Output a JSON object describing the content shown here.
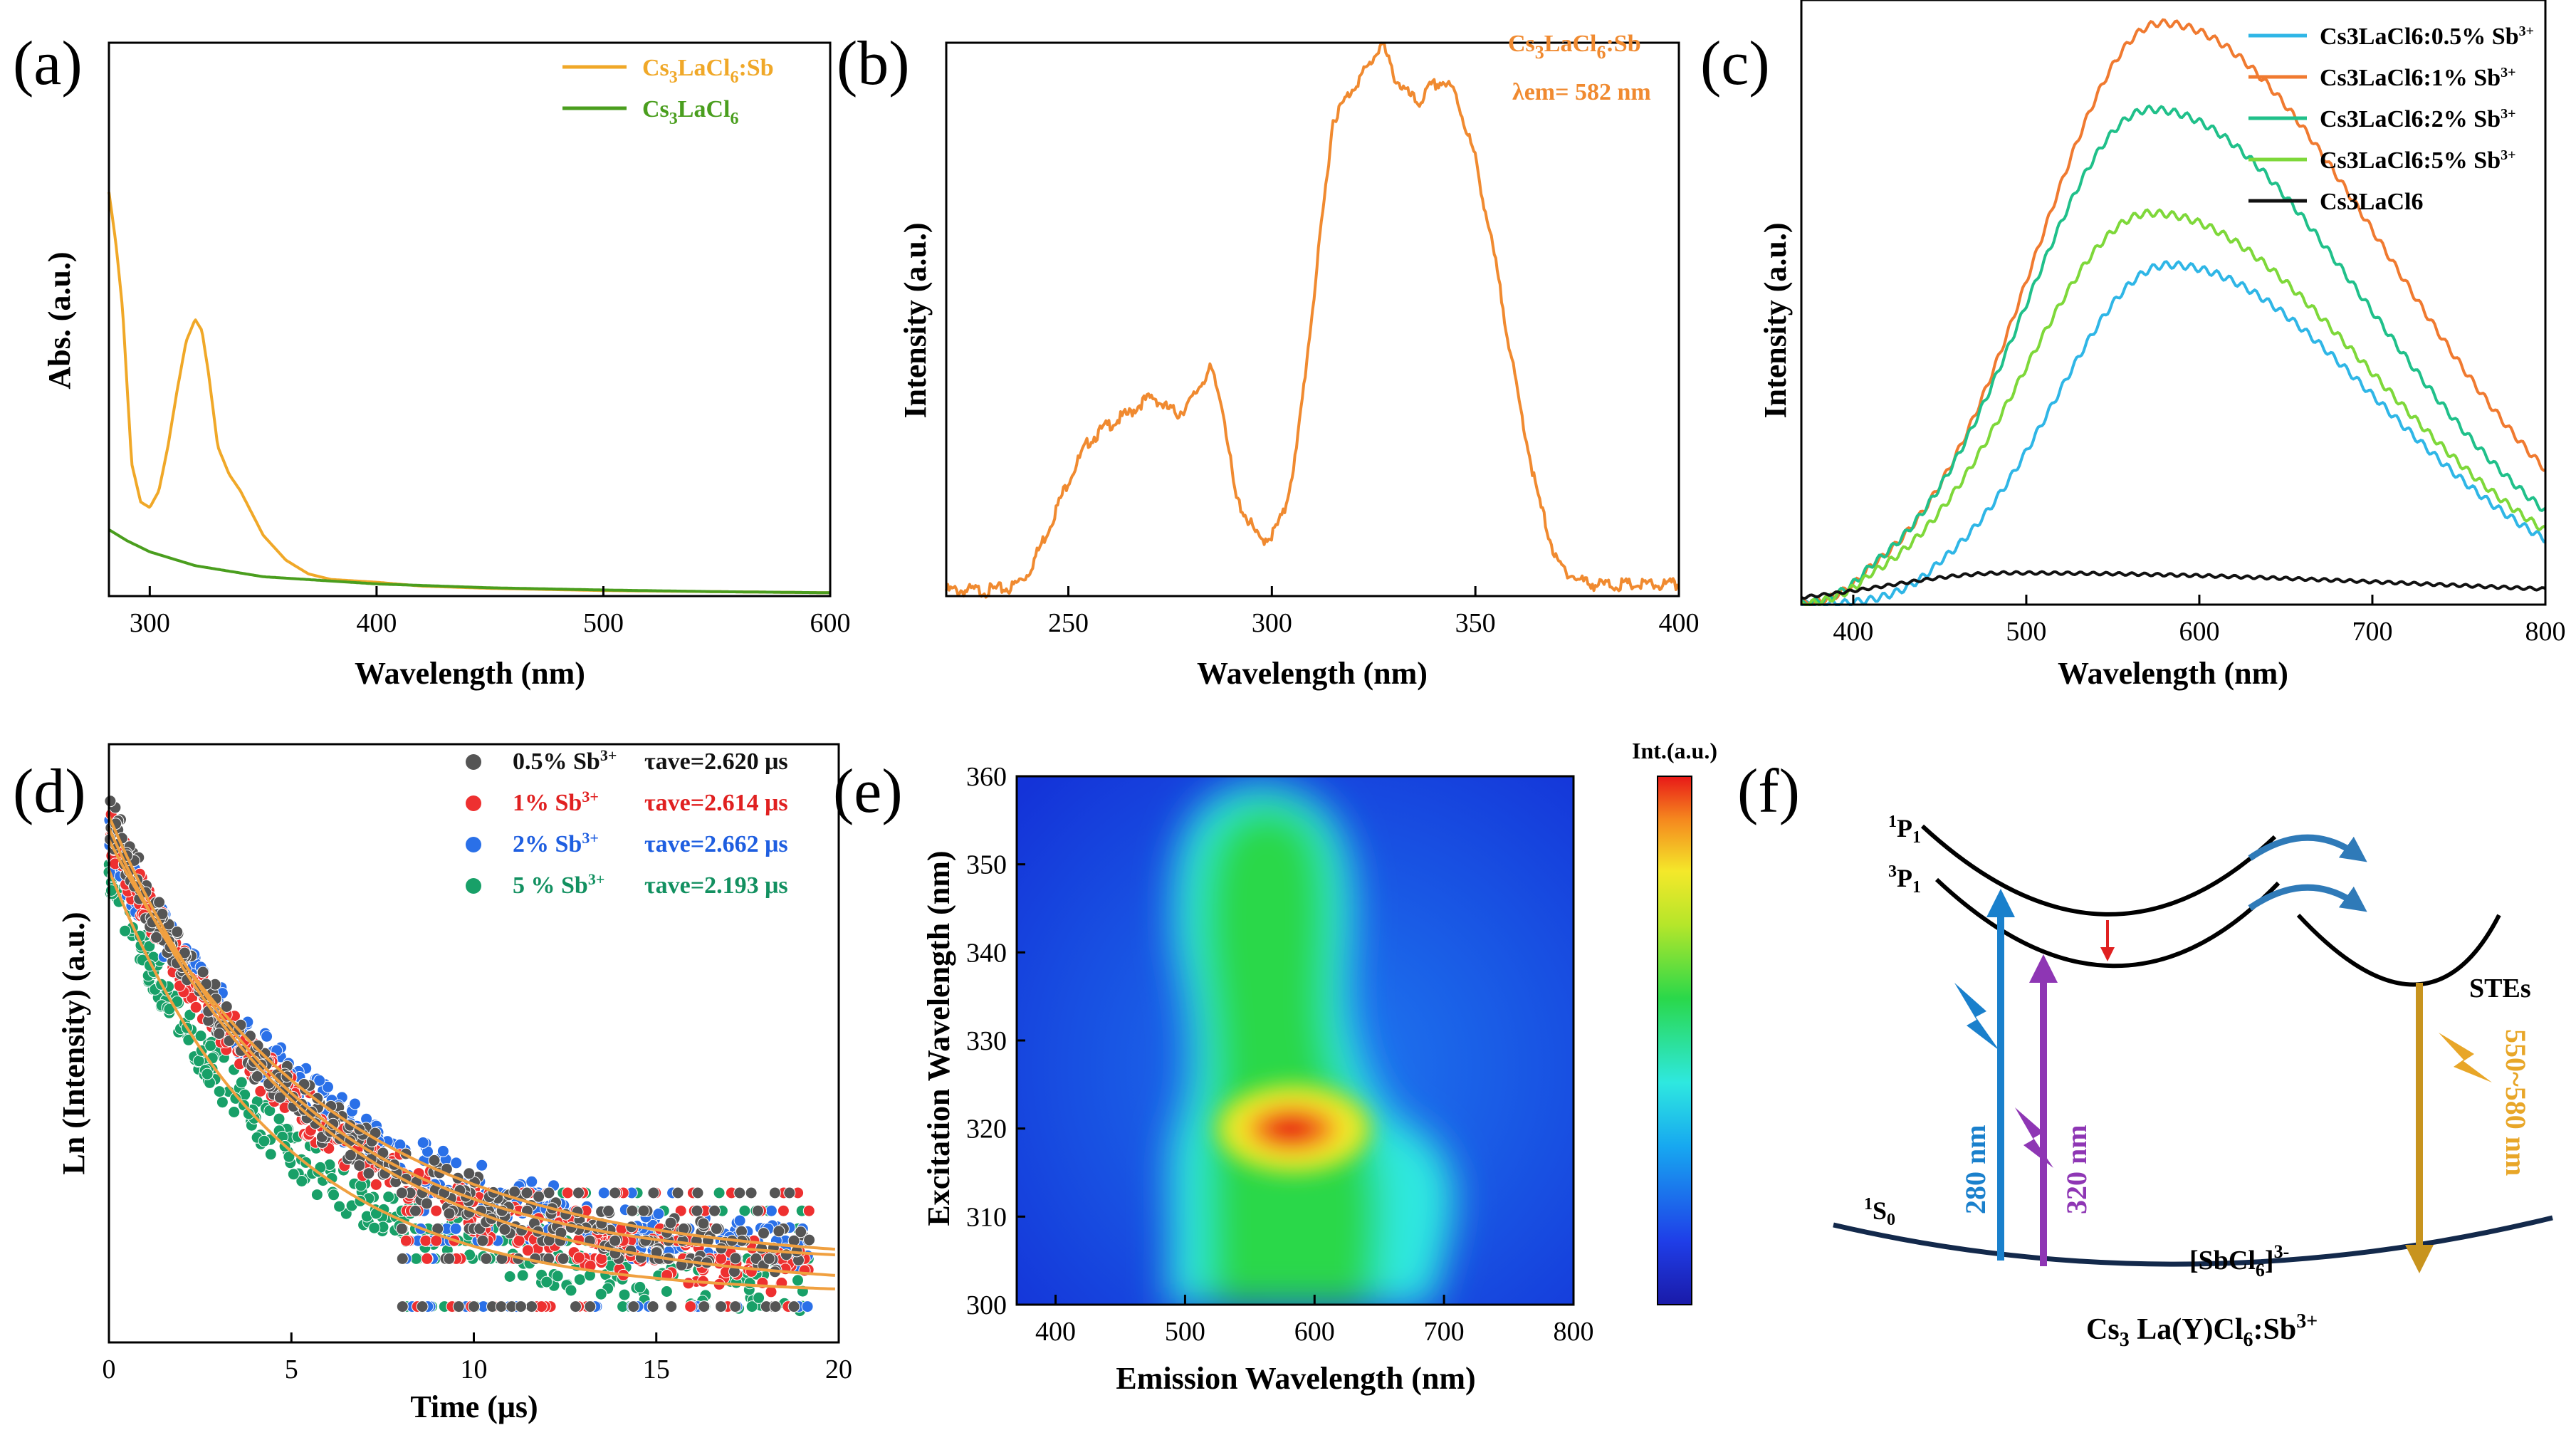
{
  "figure": {
    "panels": [
      "(a)",
      "(b)",
      "(c)",
      "(d)",
      "(e)",
      "(f)"
    ]
  },
  "chart_data": [
    {
      "id": "a",
      "type": "line",
      "xlabel": "Wavelength (nm)",
      "ylabel": "Abs. (a.u.)",
      "xlim": [
        282,
        600
      ],
      "ylim": [
        0,
        1
      ],
      "xticks": [
        300,
        400,
        500,
        600
      ],
      "legend_position": "top-right",
      "series": [
        {
          "name": "Cs3LaCl6:Sb",
          "color": "#f0a828",
          "x": [
            282,
            285,
            288,
            292,
            296,
            300,
            304,
            308,
            312,
            316,
            320,
            323,
            326,
            330,
            335,
            340,
            345,
            350,
            360,
            370,
            380,
            400,
            420,
            450,
            500,
            550,
            600
          ],
          "y": [
            0.73,
            0.64,
            0.52,
            0.24,
            0.17,
            0.16,
            0.19,
            0.27,
            0.37,
            0.46,
            0.5,
            0.48,
            0.4,
            0.27,
            0.22,
            0.19,
            0.15,
            0.11,
            0.065,
            0.04,
            0.03,
            0.025,
            0.018,
            0.014,
            0.01,
            0.008,
            0.006
          ]
        },
        {
          "name": "Cs3LaCl6",
          "color": "#4a9e1e",
          "x": [
            282,
            290,
            300,
            320,
            350,
            400,
            450,
            500,
            550,
            600
          ],
          "y": [
            0.12,
            0.1,
            0.08,
            0.055,
            0.035,
            0.022,
            0.015,
            0.011,
            0.008,
            0.006
          ]
        }
      ]
    },
    {
      "id": "b",
      "type": "line",
      "xlabel": "Wavelength (nm)",
      "ylabel": "Intensity (a.u.)",
      "xlim": [
        220,
        400
      ],
      "ylim": [
        0,
        1
      ],
      "xticks": [
        250,
        300,
        350,
        400
      ],
      "annotation": {
        "label": "Cs3LaCl6:Sb",
        "emission": "λem= 582 nm"
      },
      "series": [
        {
          "name": "Cs3LaCl6:Sb",
          "color": "#f08a30",
          "x": [
            220,
            230,
            236,
            240,
            245,
            250,
            255,
            260,
            265,
            268,
            271,
            274,
            277,
            280,
            283,
            285,
            288,
            291,
            294,
            297,
            300,
            303,
            306,
            310,
            315,
            320,
            324,
            327,
            330,
            333,
            336,
            339,
            342,
            345,
            350,
            355,
            360,
            365,
            370,
            375,
            380,
            390,
            400
          ],
          "y": [
            0.01,
            0.01,
            0.015,
            0.04,
            0.12,
            0.21,
            0.28,
            0.31,
            0.33,
            0.35,
            0.36,
            0.34,
            0.33,
            0.35,
            0.39,
            0.41,
            0.34,
            0.18,
            0.14,
            0.1,
            0.11,
            0.15,
            0.26,
            0.52,
            0.86,
            0.92,
            0.96,
            1.0,
            0.94,
            0.91,
            0.89,
            0.92,
            0.93,
            0.91,
            0.79,
            0.6,
            0.38,
            0.19,
            0.06,
            0.03,
            0.02,
            0.02,
            0.02
          ]
        }
      ]
    },
    {
      "id": "c",
      "type": "line",
      "xlabel": "Wavelength (nm)",
      "ylabel": "Intensity (a.u.)",
      "xlim": [
        370,
        800
      ],
      "ylim": [
        0,
        1.05
      ],
      "xticks": [
        400,
        500,
        600,
        700,
        800
      ],
      "legend_position": "top-right",
      "series": [
        {
          "name": "Cs3LaCl6:0.5% Sb3+",
          "label_main": "Cs3LaCl6:0.5% Sb",
          "label_sup": "3+",
          "color": "#2fb6e6",
          "peak": 582,
          "amp": 0.59,
          "left_width": 65,
          "right_width": 120,
          "baseline_cut": 450
        },
        {
          "name": "Cs3LaCl6:1% Sb3+",
          "label_main": "Cs3LaCl6:1% Sb",
          "label_sup": "3+",
          "color": "#f07a30",
          "peak": 578,
          "amp": 1.01,
          "left_width": 72,
          "right_width": 130,
          "baseline_cut": 410
        },
        {
          "name": "Cs3LaCl6:2% Sb3+",
          "label_main": "Cs3LaCl6:2% Sb",
          "label_sup": "3+",
          "color": "#20c08a",
          "peak": 572,
          "amp": 0.86,
          "left_width": 72,
          "right_width": 125,
          "baseline_cut": 410
        },
        {
          "name": "Cs3LaCl6:5% Sb3+",
          "label_main": "Cs3LaCl6:5% Sb",
          "label_sup": "3+",
          "color": "#7ed83a",
          "peak": 572,
          "amp": 0.68,
          "left_width": 72,
          "right_width": 125,
          "baseline_cut": 410
        },
        {
          "name": "Cs3LaCl6",
          "label_main": "Cs3LaCl6",
          "label_sup": "",
          "color": "#111111",
          "peak": 490,
          "amp": 0.055,
          "left_width": 70,
          "right_width": 260,
          "baseline_cut": 370
        }
      ]
    },
    {
      "id": "d",
      "type": "scatter",
      "xlabel": "Time (μs)",
      "ylabel": "Ln (Intensity) (a.u.)",
      "xlim": [
        0,
        20
      ],
      "ylim": [
        0,
        1
      ],
      "xticks": [
        0,
        5,
        10,
        15,
        20
      ],
      "legend_position": "top-right",
      "series": [
        {
          "name": "0.5% Sb3+",
          "pct": "0.5%",
          "tau": "τave=2.620 μs",
          "color": "#555555",
          "text_color": "#111111",
          "y0": 0.88,
          "yfloor": 0.13,
          "decay": 5.2
        },
        {
          "name": "1% Sb3+",
          "pct": "1%",
          "tau": "τave=2.614 μs",
          "color": "#ee3030",
          "text_color": "#e02020",
          "y0": 0.86,
          "yfloor": 0.09,
          "decay": 5.6
        },
        {
          "name": "2% Sb3+",
          "pct": "2%",
          "tau": "τave=2.662 μs",
          "color": "#2a70e8",
          "text_color": "#1e5ee0",
          "y0": 0.84,
          "yfloor": 0.13,
          "decay": 6.0
        },
        {
          "name": "5 % Sb3+",
          "pct": "5 %",
          "tau": "τave=2.193 μs",
          "color": "#18a068",
          "text_color": "#129060",
          "y0": 0.79,
          "yfloor": 0.08,
          "decay": 4.6
        }
      ]
    },
    {
      "id": "e",
      "type": "heatmap",
      "xlabel": "Emission Wavelength (nm)",
      "ylabel": "Excitation Wavelength (nm)",
      "xlim": [
        370,
        800
      ],
      "ylim": [
        300,
        360
      ],
      "xticks": [
        400,
        500,
        600,
        700,
        800
      ],
      "yticks": [
        300,
        310,
        320,
        330,
        340,
        350,
        360
      ],
      "colorbar_label": "Int.(a.u.)",
      "hotspot": {
        "emission": 585,
        "excitation": 320
      }
    }
  ],
  "scheme": {
    "levels": [
      "1P1",
      "3P1",
      "1S0",
      "STEs"
    ],
    "excitation_arrows": [
      "280 nm",
      "320 nm"
    ],
    "emission_arrow": "550~580 nm",
    "complex": "[SbCl6]3-",
    "formula": "Cs3 La(Y)Cl6:Sb3+"
  }
}
